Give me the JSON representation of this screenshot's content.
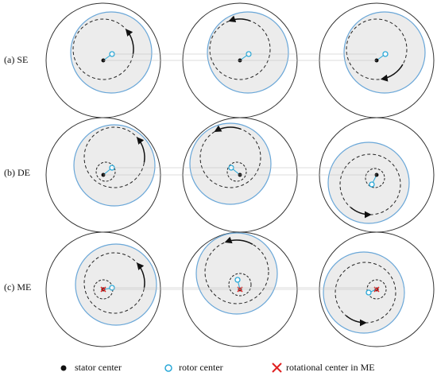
{
  "rows": [
    {
      "label": "(a) SE"
    },
    {
      "label": "(b) DE"
    },
    {
      "label": "(c) ME"
    }
  ],
  "legend": {
    "stator": "stator center",
    "rotor": "rotor center",
    "rotational": "rotational center in ME"
  }
}
